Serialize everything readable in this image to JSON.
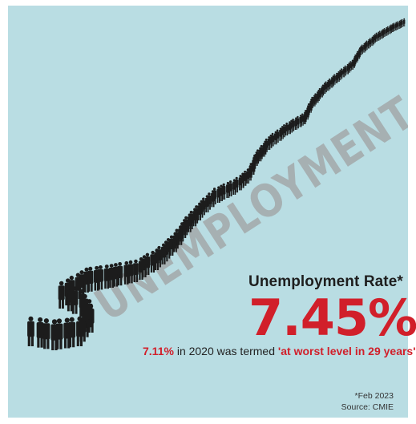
{
  "colors": {
    "background": "#b9dde3",
    "accent_red": "#d11f2a",
    "people": "#1c1c1c",
    "shadow_text": "#a8b2b4"
  },
  "illustration": {
    "shadow_word": "UNEMPLOYMENT",
    "subject": "queue of people in business attire"
  },
  "headline": {
    "label": "Unemployment Rate*",
    "rate": "7.45%"
  },
  "subline": {
    "highlight_value": "7.11%",
    "middle": " in 2020 was termed ",
    "quote": "'at worst level in 29 years'"
  },
  "footnote": {
    "date": "*Feb 2023",
    "source": "Source: CMIE"
  }
}
